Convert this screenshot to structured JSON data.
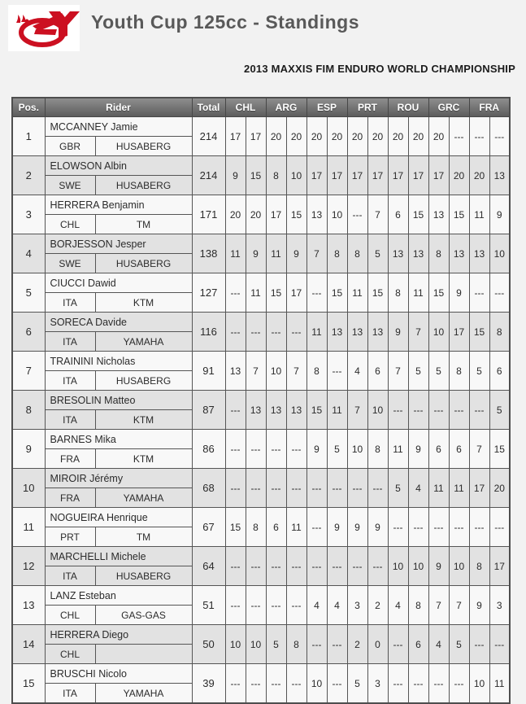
{
  "header": {
    "logo_name": "enduro-youth-ey-logo",
    "title": "Youth Cup 125cc - Standings",
    "subtitle": "2013 MAXXIS FIM ENDURO WORLD CHAMPIONSHIP"
  },
  "colors": {
    "logo_red": "#cc1021",
    "header_bg_top": "#8e8e8e",
    "header_bg_bottom": "#5d5d5d",
    "row_odd_bg": "#f8f8f8",
    "row_even_bg": "#e2e2e2",
    "border": "#555555",
    "title_gray": "#595959",
    "page_bg": "#f2f2f2"
  },
  "table": {
    "columns": [
      "Pos.",
      "Rider",
      "Total"
    ],
    "round_columns": [
      "CHL",
      "ARG",
      "ESP",
      "PRT",
      "ROU",
      "GRC",
      "FRA"
    ],
    "races_per_round": 2,
    "rows": [
      {
        "pos": "1",
        "name": "MCCANNEY Jamie",
        "country": "GBR",
        "bike": "HUSABERG",
        "total": "214",
        "scores": [
          "17",
          "17",
          "20",
          "20",
          "20",
          "20",
          "20",
          "20",
          "20",
          "20",
          "20",
          "---",
          "---",
          "---"
        ]
      },
      {
        "pos": "2",
        "name": "ELOWSON Albin",
        "country": "SWE",
        "bike": "HUSABERG",
        "total": "214",
        "scores": [
          "9",
          "15",
          "8",
          "10",
          "17",
          "17",
          "17",
          "17",
          "17",
          "17",
          "17",
          "20",
          "20",
          "13"
        ]
      },
      {
        "pos": "3",
        "name": "HERRERA Benjamin",
        "country": "CHL",
        "bike": "TM",
        "total": "171",
        "scores": [
          "20",
          "20",
          "17",
          "15",
          "13",
          "10",
          "---",
          "7",
          "6",
          "15",
          "13",
          "15",
          "11",
          "9"
        ]
      },
      {
        "pos": "4",
        "name": "BORJESSON Jesper",
        "country": "SWE",
        "bike": "HUSABERG",
        "total": "138",
        "scores": [
          "11",
          "9",
          "11",
          "9",
          "7",
          "8",
          "8",
          "5",
          "13",
          "13",
          "8",
          "13",
          "13",
          "10"
        ]
      },
      {
        "pos": "5",
        "name": "CIUCCI Dawid",
        "country": "ITA",
        "bike": "KTM",
        "total": "127",
        "scores": [
          "---",
          "11",
          "15",
          "17",
          "---",
          "15",
          "11",
          "15",
          "8",
          "11",
          "15",
          "9",
          "---",
          "---"
        ]
      },
      {
        "pos": "6",
        "name": "SORECA Davide",
        "country": "ITA",
        "bike": "YAMAHA",
        "total": "116",
        "scores": [
          "---",
          "---",
          "---",
          "---",
          "11",
          "13",
          "13",
          "13",
          "9",
          "7",
          "10",
          "17",
          "15",
          "8"
        ]
      },
      {
        "pos": "7",
        "name": "TRAININI Nicholas",
        "country": "ITA",
        "bike": "HUSABERG",
        "total": "91",
        "scores": [
          "13",
          "7",
          "10",
          "7",
          "8",
          "---",
          "4",
          "6",
          "7",
          "5",
          "5",
          "8",
          "5",
          "6"
        ]
      },
      {
        "pos": "8",
        "name": "BRESOLIN Matteo",
        "country": "ITA",
        "bike": "KTM",
        "total": "87",
        "scores": [
          "---",
          "13",
          "13",
          "13",
          "15",
          "11",
          "7",
          "10",
          "---",
          "---",
          "---",
          "---",
          "---",
          "5"
        ]
      },
      {
        "pos": "9",
        "name": "BARNES Mika",
        "country": "FRA",
        "bike": "KTM",
        "total": "86",
        "scores": [
          "---",
          "---",
          "---",
          "---",
          "9",
          "5",
          "10",
          "8",
          "11",
          "9",
          "6",
          "6",
          "7",
          "15"
        ]
      },
      {
        "pos": "10",
        "name": "MIROIR Jérémy",
        "country": "FRA",
        "bike": "YAMAHA",
        "total": "68",
        "scores": [
          "---",
          "---",
          "---",
          "---",
          "---",
          "---",
          "---",
          "---",
          "5",
          "4",
          "11",
          "11",
          "17",
          "20"
        ]
      },
      {
        "pos": "11",
        "name": "NOGUEIRA Henrique",
        "country": "PRT",
        "bike": "TM",
        "total": "67",
        "scores": [
          "15",
          "8",
          "6",
          "11",
          "---",
          "9",
          "9",
          "9",
          "---",
          "---",
          "---",
          "---",
          "---",
          "---"
        ]
      },
      {
        "pos": "12",
        "name": "MARCHELLI Michele",
        "country": "ITA",
        "bike": "HUSABERG",
        "total": "64",
        "scores": [
          "---",
          "---",
          "---",
          "---",
          "---",
          "---",
          "---",
          "---",
          "10",
          "10",
          "9",
          "10",
          "8",
          "17"
        ]
      },
      {
        "pos": "13",
        "name": "LANZ Esteban",
        "country": "CHL",
        "bike": "GAS-GAS",
        "total": "51",
        "scores": [
          "---",
          "---",
          "---",
          "---",
          "4",
          "4",
          "3",
          "2",
          "4",
          "8",
          "7",
          "7",
          "9",
          "3"
        ]
      },
      {
        "pos": "14",
        "name": "HERRERA Diego",
        "country": "CHL",
        "bike": "",
        "total": "50",
        "scores": [
          "10",
          "10",
          "5",
          "8",
          "---",
          "---",
          "2",
          "0",
          "---",
          "6",
          "4",
          "5",
          "---",
          "---"
        ]
      },
      {
        "pos": "15",
        "name": "BRUSCHI Nicolo",
        "country": "ITA",
        "bike": "YAMAHA",
        "total": "39",
        "scores": [
          "---",
          "---",
          "---",
          "---",
          "10",
          "---",
          "5",
          "3",
          "---",
          "---",
          "---",
          "---",
          "10",
          "11"
        ]
      }
    ]
  }
}
